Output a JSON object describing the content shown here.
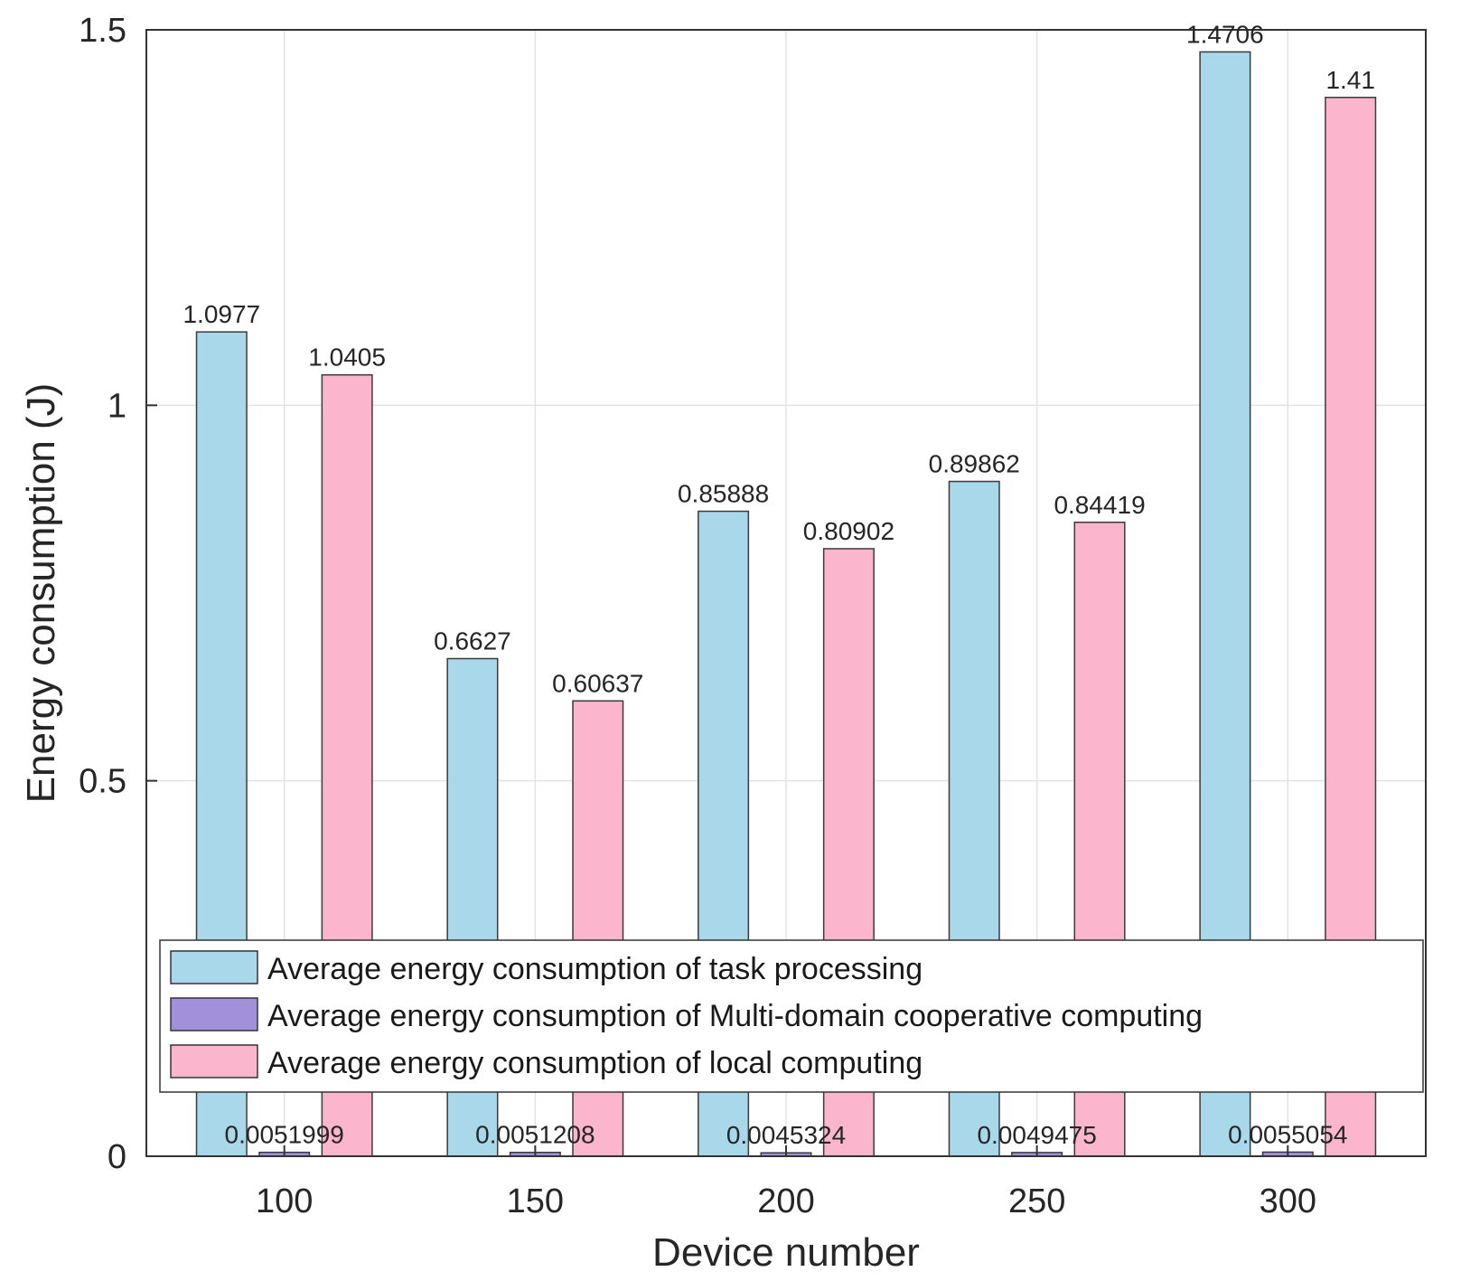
{
  "chart_data": {
    "type": "bar",
    "title": "",
    "xlabel": "Device number",
    "ylabel": "Energy consumption (J)",
    "categories": [
      "100",
      "150",
      "200",
      "250",
      "300"
    ],
    "ylim": [
      0,
      1.5
    ],
    "yticks": [
      "0",
      "0.5",
      "1",
      "1.5"
    ],
    "grid": true,
    "legend_position": "lower-center",
    "series": [
      {
        "name": "Average energy consumption of task processing",
        "color": "#a8d8ea",
        "values": [
          1.0977,
          0.6627,
          0.85888,
          0.89862,
          1.4706
        ],
        "labels": [
          "1.0977",
          "0.6627",
          "0.85888",
          "0.89862",
          "1.4706"
        ]
      },
      {
        "name": "Average energy consumption of Multi-domain cooperative computing",
        "color": "#a390db",
        "values": [
          0.0051999,
          0.0051208,
          0.0045324,
          0.0049475,
          0.0055054
        ],
        "labels": [
          "0.0051999",
          "0.0051208",
          "0.0045324",
          "0.0049475",
          "0.0055054"
        ]
      },
      {
        "name": "Average energy consumption of local computing",
        "color": "#fbb6ce",
        "values": [
          1.0405,
          0.60637,
          0.80902,
          0.84419,
          1.41
        ],
        "labels": [
          "1.0405",
          "0.60637",
          "0.80902",
          "0.84419",
          "1.41"
        ]
      }
    ]
  }
}
